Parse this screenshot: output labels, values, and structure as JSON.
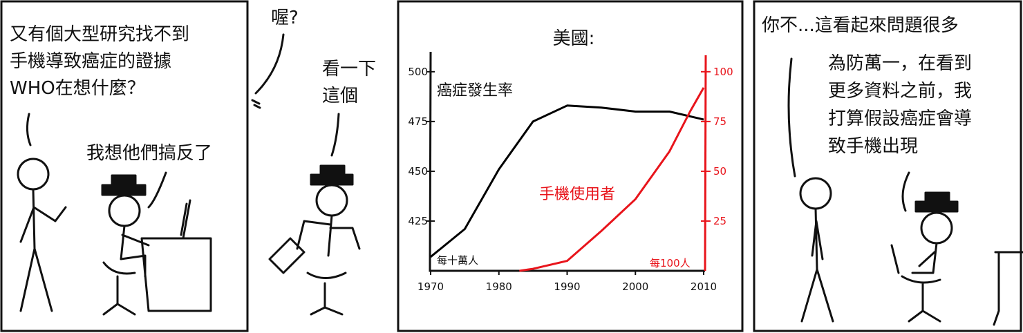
{
  "panels": [
    {
      "texts": [
        "又有個大型研究找不到",
        "手機導致癌症的證據",
        "WHO在想什麼？",
        "我想他們搞反了"
      ]
    },
    {
      "texts": [
        "喔?",
        "看一下",
        "這個"
      ]
    },
    {},
    {
      "texts": [
        "你不...這看起來問題很多",
        "為防萬一，在看到",
        "更多資料之前，我",
        "打算假設癌症會導",
        "致手機出現"
      ]
    }
  ],
  "chart_data": {
    "type": "line",
    "title": "美國:",
    "y_unit": "每十萬人",
    "y2_unit": "每100人",
    "xlim": [
      1970,
      2010
    ],
    "xticks": [
      1970,
      1980,
      1990,
      2000,
      2010
    ],
    "ylim": [
      400,
      510
    ],
    "yticks": [
      425,
      450,
      475,
      500
    ],
    "y2lim": [
      0,
      110
    ],
    "y2ticks": [
      25,
      50,
      75,
      100
    ],
    "series": [
      {
        "name": "癌症發生率",
        "color": "#000000",
        "x": [
          1970,
          1975,
          1980,
          1985,
          1990,
          1995,
          2000,
          2005,
          2010
        ],
        "values": [
          407,
          421,
          451,
          475,
          483,
          482,
          480,
          480,
          476
        ]
      },
      {
        "name": "手機使用者",
        "color": "#e8141b",
        "axis": "y2",
        "x": [
          1983,
          1985,
          1990,
          1995,
          2000,
          2005,
          2008,
          2010
        ],
        "values": [
          0,
          1,
          5,
          20,
          36,
          60,
          80,
          92
        ]
      }
    ]
  }
}
